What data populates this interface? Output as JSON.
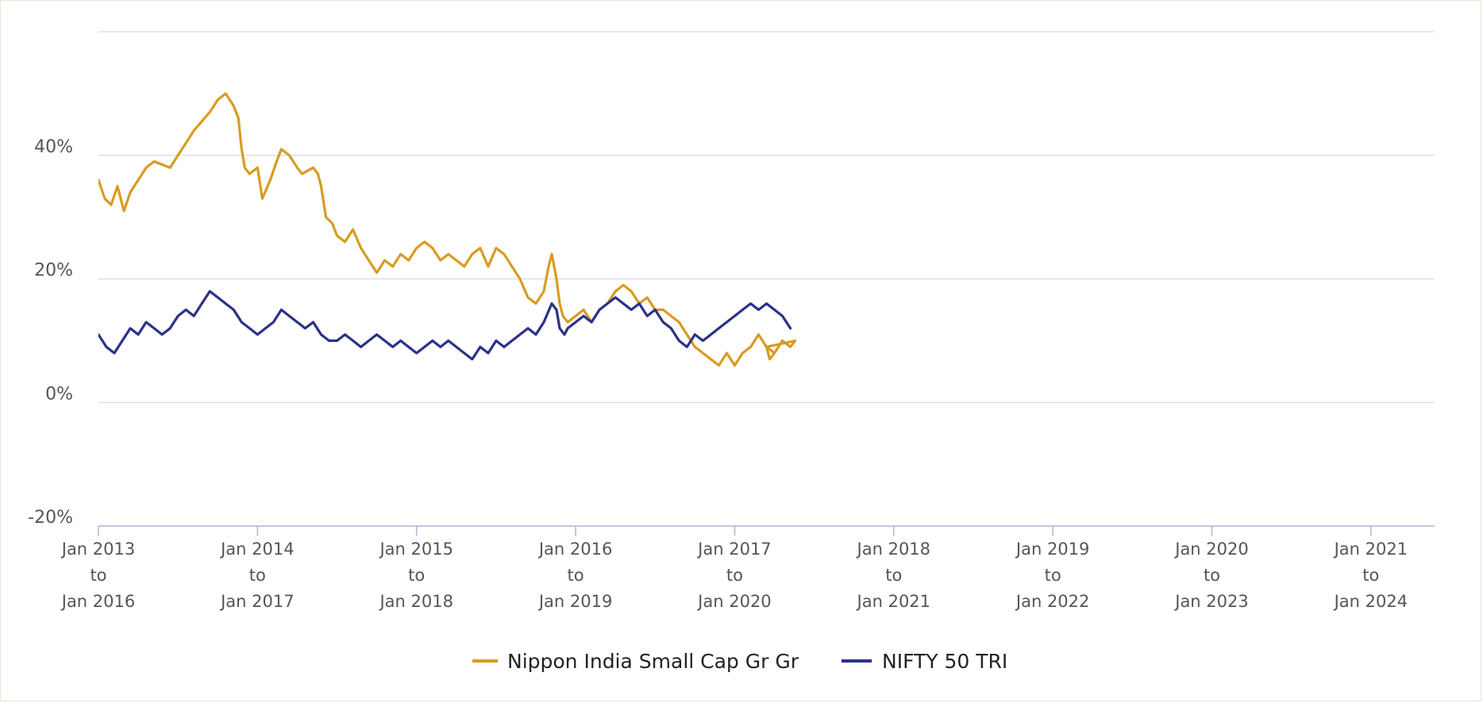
{
  "chart_data": {
    "type": "line",
    "title": "",
    "xlabel": "",
    "ylabel": "",
    "ylim": [
      -20,
      60
    ],
    "y_ticks": [
      -20,
      0,
      20,
      40
    ],
    "y_tick_labels": [
      "-20%",
      "0%",
      "20%",
      "40%"
    ],
    "grid": true,
    "legend_position": "bottom-center",
    "x_tick_labels": [
      [
        "Jan 2013",
        "to",
        "Jan 2016"
      ],
      [
        "Jan 2014",
        "to",
        "Jan 2017"
      ],
      [
        "Jan 2015",
        "to",
        "Jan 2018"
      ],
      [
        "Jan 2016",
        "to",
        "Jan 2019"
      ],
      [
        "Jan 2017",
        "to",
        "Jan 2020"
      ],
      [
        "Jan 2018",
        "to",
        "Jan 2021"
      ],
      [
        "Jan 2019",
        "to",
        "Jan 2022"
      ],
      [
        "Jan 2020",
        "to",
        "Jan 2023"
      ],
      [
        "Jan 2021",
        "to",
        "Jan 2024"
      ]
    ],
    "x_range": [
      0,
      8.4
    ],
    "series": [
      {
        "name": "Nippon India Small Cap Gr Gr",
        "color": "#d89c21",
        "points": [
          [
            0,
            36
          ],
          [
            0.04,
            33
          ],
          [
            0.08,
            32
          ],
          [
            0.12,
            35
          ],
          [
            0.16,
            31
          ],
          [
            0.2,
            34
          ],
          [
            0.25,
            36
          ],
          [
            0.3,
            38
          ],
          [
            0.35,
            39
          ],
          [
            0.45,
            38
          ],
          [
            0.5,
            40
          ],
          [
            0.55,
            42
          ],
          [
            0.6,
            44
          ],
          [
            0.7,
            47
          ],
          [
            0.75,
            49
          ],
          [
            0.8,
            50
          ],
          [
            0.85,
            48
          ],
          [
            0.88,
            46
          ],
          [
            0.9,
            41
          ],
          [
            0.92,
            38
          ],
          [
            0.95,
            37
          ],
          [
            1.0,
            38
          ],
          [
            1.03,
            33
          ],
          [
            1.08,
            36
          ],
          [
            1.12,
            39
          ],
          [
            1.15,
            41
          ],
          [
            1.2,
            40
          ],
          [
            1.25,
            38
          ],
          [
            1.28,
            37
          ],
          [
            1.35,
            38
          ],
          [
            1.38,
            37
          ],
          [
            1.4,
            35
          ],
          [
            1.43,
            30
          ],
          [
            1.47,
            29
          ],
          [
            1.5,
            27
          ],
          [
            1.55,
            26
          ],
          [
            1.6,
            28
          ],
          [
            1.65,
            25
          ],
          [
            1.7,
            23
          ],
          [
            1.75,
            21
          ],
          [
            1.8,
            23
          ],
          [
            1.85,
            22
          ],
          [
            1.9,
            24
          ],
          [
            1.95,
            23
          ],
          [
            2.0,
            25
          ],
          [
            2.05,
            26
          ],
          [
            2.1,
            25
          ],
          [
            2.15,
            23
          ],
          [
            2.2,
            24
          ],
          [
            2.3,
            22
          ],
          [
            2.35,
            24
          ],
          [
            2.4,
            25
          ],
          [
            2.45,
            22
          ],
          [
            2.5,
            25
          ],
          [
            2.55,
            24
          ],
          [
            2.6,
            22
          ],
          [
            2.65,
            20
          ],
          [
            2.7,
            17
          ],
          [
            2.75,
            16
          ],
          [
            2.8,
            18
          ],
          [
            2.83,
            22
          ],
          [
            2.85,
            24
          ],
          [
            2.88,
            20
          ],
          [
            2.9,
            16
          ],
          [
            2.92,
            14
          ],
          [
            2.95,
            13
          ],
          [
            3.0,
            14
          ],
          [
            3.05,
            15
          ],
          [
            3.1,
            13
          ],
          [
            3.15,
            15
          ],
          [
            3.2,
            16
          ],
          [
            3.25,
            18
          ],
          [
            3.3,
            19
          ],
          [
            3.35,
            18
          ],
          [
            3.4,
            16
          ],
          [
            3.45,
            17
          ],
          [
            3.5,
            15
          ],
          [
            3.55,
            15
          ],
          [
            3.6,
            14
          ],
          [
            3.65,
            13
          ],
          [
            3.7,
            11
          ],
          [
            3.75,
            9
          ],
          [
            3.8,
            8
          ],
          [
            3.85,
            7
          ],
          [
            3.9,
            6
          ],
          [
            3.95,
            8
          ],
          [
            4.0,
            6
          ],
          [
            4.05,
            8
          ],
          [
            4.1,
            9
          ],
          [
            4.15,
            11
          ],
          [
            4.2,
            9
          ],
          [
            4.25,
            8
          ],
          [
            4.3,
            10
          ],
          [
            4.35,
            9
          ],
          [
            4.38,
            10
          ],
          [
            4.2,
            9
          ],
          [
            4.22,
            7
          ],
          [
            4.25,
            8
          ]
        ]
      },
      {
        "name": "NIFTY 50 TRI",
        "color": "#2a3287",
        "points": [
          [
            0,
            11
          ],
          [
            0.05,
            9
          ],
          [
            0.1,
            8
          ],
          [
            0.15,
            10
          ],
          [
            0.2,
            12
          ],
          [
            0.25,
            11
          ],
          [
            0.3,
            13
          ],
          [
            0.35,
            12
          ],
          [
            0.4,
            11
          ],
          [
            0.45,
            12
          ],
          [
            0.5,
            14
          ],
          [
            0.55,
            15
          ],
          [
            0.6,
            14
          ],
          [
            0.65,
            16
          ],
          [
            0.7,
            18
          ],
          [
            0.75,
            17
          ],
          [
            0.8,
            16
          ],
          [
            0.85,
            15
          ],
          [
            0.9,
            13
          ],
          [
            0.95,
            12
          ],
          [
            1.0,
            11
          ],
          [
            1.05,
            12
          ],
          [
            1.1,
            13
          ],
          [
            1.15,
            15
          ],
          [
            1.2,
            14
          ],
          [
            1.25,
            13
          ],
          [
            1.3,
            12
          ],
          [
            1.35,
            13
          ],
          [
            1.4,
            11
          ],
          [
            1.45,
            10
          ],
          [
            1.5,
            10
          ],
          [
            1.55,
            11
          ],
          [
            1.6,
            10
          ],
          [
            1.65,
            9
          ],
          [
            1.7,
            10
          ],
          [
            1.75,
            11
          ],
          [
            1.8,
            10
          ],
          [
            1.85,
            9
          ],
          [
            1.9,
            10
          ],
          [
            1.95,
            9
          ],
          [
            2.0,
            8
          ],
          [
            2.05,
            9
          ],
          [
            2.1,
            10
          ],
          [
            2.15,
            9
          ],
          [
            2.2,
            10
          ],
          [
            2.25,
            9
          ],
          [
            2.3,
            8
          ],
          [
            2.35,
            7
          ],
          [
            2.4,
            9
          ],
          [
            2.45,
            8
          ],
          [
            2.5,
            10
          ],
          [
            2.55,
            9
          ],
          [
            2.6,
            10
          ],
          [
            2.65,
            11
          ],
          [
            2.7,
            12
          ],
          [
            2.75,
            11
          ],
          [
            2.8,
            13
          ],
          [
            2.85,
            16
          ],
          [
            2.88,
            15
          ],
          [
            2.9,
            12
          ],
          [
            2.93,
            11
          ],
          [
            2.95,
            12
          ],
          [
            3.0,
            13
          ],
          [
            3.05,
            14
          ],
          [
            3.1,
            13
          ],
          [
            3.15,
            15
          ],
          [
            3.2,
            16
          ],
          [
            3.25,
            17
          ],
          [
            3.3,
            16
          ],
          [
            3.35,
            15
          ],
          [
            3.4,
            16
          ],
          [
            3.45,
            14
          ],
          [
            3.5,
            15
          ],
          [
            3.55,
            13
          ],
          [
            3.6,
            12
          ],
          [
            3.65,
            10
          ],
          [
            3.7,
            9
          ],
          [
            3.75,
            11
          ],
          [
            3.8,
            10
          ],
          [
            3.85,
            11
          ],
          [
            3.9,
            12
          ],
          [
            3.95,
            13
          ],
          [
            4.0,
            14
          ],
          [
            4.05,
            15
          ],
          [
            4.1,
            16
          ],
          [
            4.15,
            15
          ],
          [
            4.2,
            16
          ],
          [
            4.25,
            15
          ],
          [
            4.3,
            14
          ],
          [
            4.35,
            12
          ]
        ]
      }
    ]
  },
  "legend": {
    "items": [
      {
        "label": "Nippon India Small Cap Gr Gr",
        "color": "#d89c21"
      },
      {
        "label": "NIFTY 50 TRI",
        "color": "#2a3287"
      }
    ]
  }
}
